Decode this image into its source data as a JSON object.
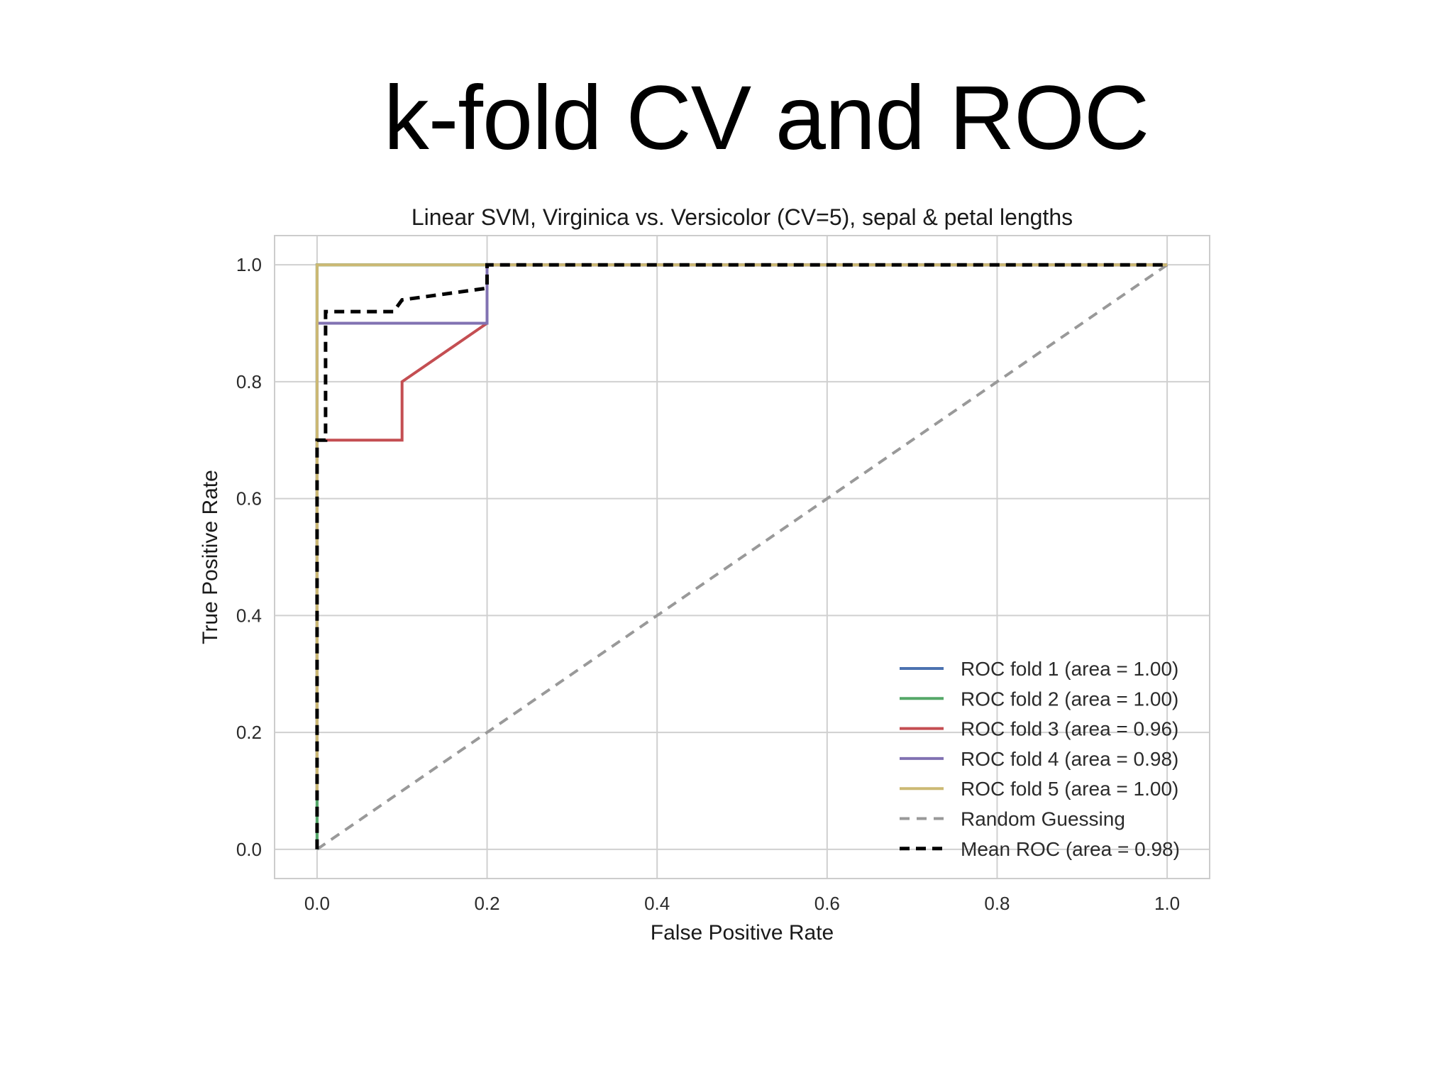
{
  "slide": {
    "title": "k-fold CV and ROC"
  },
  "chart_data": {
    "type": "line",
    "title": "Linear SVM, Virginica vs. Versicolor (CV=5), sepal & petal lengths",
    "xlabel": "False Positive Rate",
    "ylabel": "True Positive Rate",
    "xlim": [
      -0.05,
      1.05
    ],
    "ylim": [
      -0.05,
      1.05
    ],
    "xticks": [
      "0.0",
      "0.2",
      "0.4",
      "0.6",
      "0.8",
      "1.0"
    ],
    "yticks": [
      "0.0",
      "0.2",
      "0.4",
      "0.6",
      "0.8",
      "1.0"
    ],
    "grid": true,
    "legend_position": "lower-right",
    "series": [
      {
        "name": "ROC fold 1 (area = 1.00)",
        "color": "#4c72b0",
        "style": "solid",
        "x": [
          0.0,
          0.0,
          1.0
        ],
        "y": [
          0.0,
          1.0,
          1.0
        ]
      },
      {
        "name": "ROC fold 2 (area = 1.00)",
        "color": "#55a868",
        "style": "solid",
        "x": [
          0.0,
          0.0,
          1.0
        ],
        "y": [
          0.0,
          1.0,
          1.0
        ]
      },
      {
        "name": "ROC fold 3 (area = 0.96)",
        "color": "#c44e52",
        "style": "solid",
        "x": [
          0.0,
          0.0,
          0.1,
          0.1,
          0.2,
          0.2,
          1.0
        ],
        "y": [
          0.1,
          0.7,
          0.7,
          0.8,
          0.9,
          1.0,
          1.0
        ]
      },
      {
        "name": "ROC fold 4 (area = 0.98)",
        "color": "#8172b2",
        "style": "solid",
        "x": [
          0.0,
          0.0,
          0.2,
          0.2,
          1.0
        ],
        "y": [
          0.1,
          0.9,
          0.9,
          1.0,
          1.0
        ]
      },
      {
        "name": "ROC fold 5 (area = 1.00)",
        "color": "#ccb974",
        "style": "solid",
        "x": [
          0.0,
          0.0,
          1.0
        ],
        "y": [
          0.1,
          1.0,
          1.0
        ]
      },
      {
        "name": "Random Guessing",
        "color": "#999999",
        "style": "dashed",
        "x": [
          0.0,
          1.0
        ],
        "y": [
          0.0,
          1.0
        ]
      },
      {
        "name": "Mean ROC (area = 0.98)",
        "color": "#000000",
        "style": "dashed-bold",
        "x": [
          0.0,
          0.0,
          0.0,
          0.0,
          0.01,
          0.01,
          0.09,
          0.1,
          0.2,
          0.2,
          0.21,
          1.0
        ],
        "y": [
          0.0,
          0.2,
          0.5,
          0.7,
          0.7,
          0.92,
          0.92,
          0.94,
          0.96,
          1.0,
          1.0,
          1.0
        ]
      }
    ]
  }
}
